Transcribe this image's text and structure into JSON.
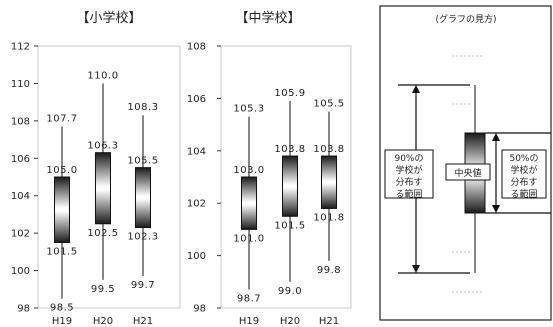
{
  "chart_data": [
    {
      "type": "box",
      "title": "【小学校】",
      "categories": [
        "H19",
        "H20",
        "H21"
      ],
      "ylim": [
        98,
        112
      ],
      "yticks": [
        98,
        100,
        102,
        104,
        106,
        108,
        110,
        112
      ],
      "boxes": [
        {
          "min": 98.5,
          "q1": 101.5,
          "median": 103.2,
          "q3": 105.0,
          "max": 107.7,
          "labels": {
            "min": "98.5",
            "q1": "101.5",
            "q3": "105.0",
            "max": "107.7"
          }
        },
        {
          "min": 99.5,
          "q1": 102.5,
          "median": 104.4,
          "q3": 106.3,
          "max": 110.0,
          "labels": {
            "min": "99.5",
            "q1": "102.5",
            "q3": "106.3",
            "max": "110.0"
          }
        },
        {
          "min": 99.7,
          "q1": 102.3,
          "median": 103.9,
          "q3": 105.5,
          "max": 108.3,
          "labels": {
            "min": "99.7",
            "q1": "102.3",
            "q3": "105.5",
            "max": "108.3"
          }
        }
      ]
    },
    {
      "type": "box",
      "title": "【中学校】",
      "categories": [
        "H19",
        "H20",
        "H21"
      ],
      "ylim": [
        98,
        108
      ],
      "yticks": [
        98,
        100,
        102,
        104,
        106,
        108
      ],
      "boxes": [
        {
          "min": 98.7,
          "q1": 101.0,
          "median": 102.0,
          "q3": 103.0,
          "max": 105.3,
          "labels": {
            "min": "98.7",
            "q1": "101.0",
            "q3": "103.0",
            "max": "105.3"
          }
        },
        {
          "min": 99.0,
          "q1": 101.5,
          "median": 102.6,
          "q3": 103.8,
          "max": 105.9,
          "labels": {
            "min": "99.0",
            "q1": "101.5",
            "q3": "103.8",
            "max": "105.9"
          }
        },
        {
          "min": 99.8,
          "q1": 101.8,
          "median": 102.8,
          "q3": 103.8,
          "max": 105.5,
          "labels": {
            "min": "99.8",
            "q1": "101.8",
            "q3": "103.8",
            "max": "105.5"
          }
        }
      ]
    }
  ],
  "legend": {
    "title": "(グラフの見方)",
    "left_note_lines": [
      "90%の",
      "学校が",
      "分布す",
      "る範囲"
    ],
    "center_label": "中央値",
    "right_note_lines": [
      "50%の",
      "学校が",
      "分布す",
      "る範囲"
    ]
  }
}
